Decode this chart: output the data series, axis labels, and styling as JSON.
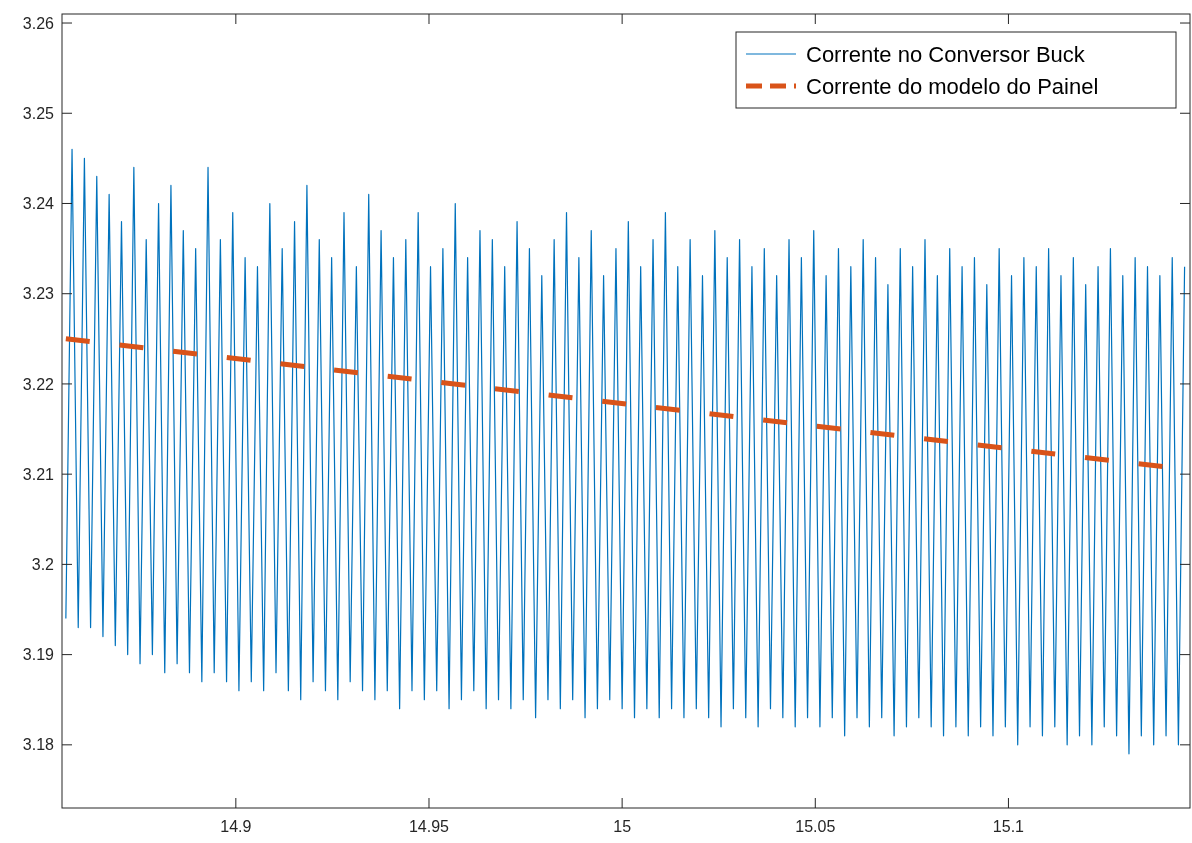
{
  "chart_data": {
    "type": "line",
    "xlim": [
      14.855,
      15.147
    ],
    "ylim": [
      3.173,
      3.261
    ],
    "xticks": [
      14.9,
      14.95,
      15,
      15.05,
      15.1
    ],
    "yticks": [
      3.18,
      3.19,
      3.2,
      3.21,
      3.22,
      3.23,
      3.24,
      3.25,
      3.26
    ],
    "grid": false,
    "legend": "top right",
    "series": [
      {
        "name": "Corrente no Conversor Buck",
        "color": "#0072bd",
        "line_style": "solid",
        "x": [
          14.856,
          14.8576,
          14.8592,
          14.8608,
          14.8624,
          14.864,
          14.8656,
          14.8672,
          14.8688,
          14.8704,
          14.872,
          14.8736,
          14.8752,
          14.8768,
          14.8784,
          14.88,
          14.8816,
          14.8832,
          14.8848,
          14.8864,
          14.888,
          14.8896,
          14.8912,
          14.8928,
          14.8944,
          14.896,
          14.8976,
          14.8992,
          14.9008,
          14.9024,
          14.904,
          14.9056,
          14.9072,
          14.9088,
          14.9104,
          14.912,
          14.9136,
          14.9152,
          14.9168,
          14.9184,
          14.92,
          14.9216,
          14.9232,
          14.9248,
          14.9264,
          14.928,
          14.9296,
          14.9312,
          14.9328,
          14.9344,
          14.936,
          14.9376,
          14.9392,
          14.9408,
          14.9424,
          14.944,
          14.9456,
          14.9472,
          14.9488,
          14.9504,
          14.952,
          14.9536,
          14.9552,
          14.9568,
          14.9584,
          14.96,
          14.9616,
          14.9632,
          14.9648,
          14.9664,
          14.968,
          14.9696,
          14.9712,
          14.9728,
          14.9744,
          14.976,
          14.9776,
          14.9792,
          14.9808,
          14.9824,
          14.984,
          14.9856,
          14.9872,
          14.9888,
          14.9904,
          14.992,
          14.9936,
          14.9952,
          14.9968,
          14.9984,
          15.0,
          15.0016,
          15.0032,
          15.0048,
          15.0064,
          15.008,
          15.0096,
          15.0112,
          15.0128,
          15.0144,
          15.016,
          15.0176,
          15.0192,
          15.0208,
          15.0224,
          15.024,
          15.0256,
          15.0272,
          15.0288,
          15.0304,
          15.032,
          15.0336,
          15.0352,
          15.0368,
          15.0384,
          15.04,
          15.0416,
          15.0432,
          15.0448,
          15.0464,
          15.048,
          15.0496,
          15.0512,
          15.0528,
          15.0544,
          15.056,
          15.0576,
          15.0592,
          15.0608,
          15.0624,
          15.064,
          15.0656,
          15.0672,
          15.0688,
          15.0704,
          15.072,
          15.0736,
          15.0752,
          15.0768,
          15.0784,
          15.08,
          15.0816,
          15.0832,
          15.0848,
          15.0864,
          15.088,
          15.0896,
          15.0912,
          15.0928,
          15.0944,
          15.096,
          15.0976,
          15.0992,
          15.1008,
          15.1024,
          15.104,
          15.1056,
          15.1072,
          15.1088,
          15.1104,
          15.112,
          15.1136,
          15.1152,
          15.1168,
          15.1184,
          15.12,
          15.1216,
          15.1232,
          15.1248,
          15.1264,
          15.128,
          15.1296,
          15.1312,
          15.1328,
          15.1344,
          15.136,
          15.1376,
          15.1392,
          15.1408,
          15.1424,
          15.144,
          15.1456
        ],
        "values": [
          3.194,
          3.246,
          3.193,
          3.245,
          3.193,
          3.243,
          3.192,
          3.241,
          3.191,
          3.238,
          3.19,
          3.244,
          3.189,
          3.236,
          3.19,
          3.24,
          3.188,
          3.242,
          3.189,
          3.237,
          3.188,
          3.235,
          3.187,
          3.244,
          3.188,
          3.236,
          3.187,
          3.239,
          3.186,
          3.234,
          3.187,
          3.233,
          3.186,
          3.24,
          3.188,
          3.235,
          3.186,
          3.238,
          3.185,
          3.242,
          3.187,
          3.236,
          3.186,
          3.234,
          3.185,
          3.239,
          3.187,
          3.233,
          3.186,
          3.241,
          3.185,
          3.237,
          3.186,
          3.234,
          3.184,
          3.236,
          3.186,
          3.239,
          3.185,
          3.233,
          3.186,
          3.235,
          3.184,
          3.24,
          3.185,
          3.234,
          3.186,
          3.237,
          3.184,
          3.236,
          3.185,
          3.233,
          3.184,
          3.238,
          3.185,
          3.235,
          3.183,
          3.232,
          3.185,
          3.236,
          3.184,
          3.239,
          3.185,
          3.234,
          3.183,
          3.237,
          3.184,
          3.232,
          3.185,
          3.235,
          3.184,
          3.238,
          3.183,
          3.233,
          3.184,
          3.236,
          3.183,
          3.239,
          3.184,
          3.233,
          3.183,
          3.236,
          3.184,
          3.232,
          3.183,
          3.237,
          3.182,
          3.234,
          3.184,
          3.236,
          3.183,
          3.233,
          3.182,
          3.235,
          3.184,
          3.232,
          3.183,
          3.236,
          3.182,
          3.234,
          3.183,
          3.237,
          3.182,
          3.232,
          3.183,
          3.235,
          3.181,
          3.233,
          3.183,
          3.236,
          3.182,
          3.234,
          3.183,
          3.231,
          3.181,
          3.235,
          3.182,
          3.233,
          3.183,
          3.236,
          3.182,
          3.232,
          3.181,
          3.235,
          3.182,
          3.233,
          3.181,
          3.234,
          3.182,
          3.231,
          3.181,
          3.235,
          3.182,
          3.232,
          3.18,
          3.234,
          3.182,
          3.233,
          3.181,
          3.235,
          3.182,
          3.232,
          3.18,
          3.234,
          3.181,
          3.231,
          3.18,
          3.233,
          3.182,
          3.235,
          3.181,
          3.232,
          3.179,
          3.234,
          3.181,
          3.233,
          3.18,
          3.232,
          3.181,
          3.234,
          3.18,
          3.233
        ]
      },
      {
        "name": "Corrente do modelo do Painel",
        "color": "#d95319",
        "line_style": "dashed",
        "x": [
          14.856,
          15.147
        ],
        "values": [
          3.225,
          3.2105
        ]
      }
    ]
  }
}
